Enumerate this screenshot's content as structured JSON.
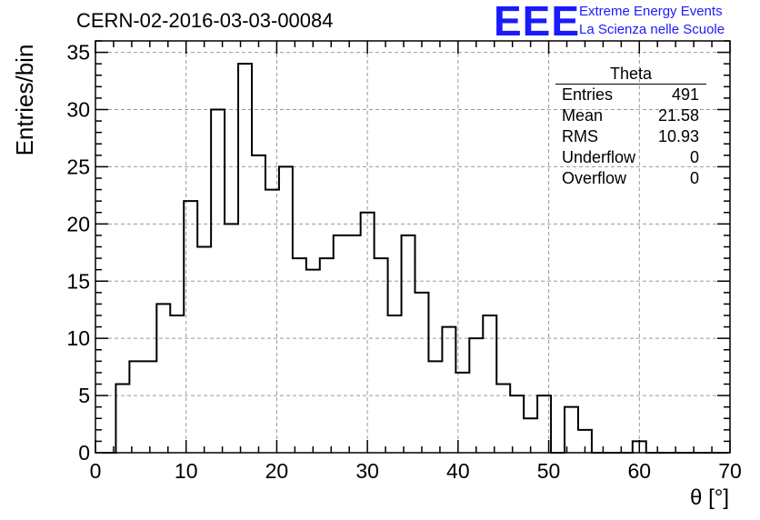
{
  "header": {
    "title": "CERN-02-2016-03-03-00084",
    "logo_text": "EEE",
    "logo_line1": "Extreme Energy Events",
    "logo_line2": "La Scienza nelle Scuole"
  },
  "colors": {
    "logo": "#1a1aff",
    "grid": "#999999",
    "line": "#000000"
  },
  "stats": {
    "title": "Theta",
    "rows": [
      {
        "label": "Entries",
        "value": "491"
      },
      {
        "label": "Mean",
        "value": "21.58"
      },
      {
        "label": "RMS",
        "value": "10.93"
      },
      {
        "label": "Underflow",
        "value": "0"
      },
      {
        "label": "Overflow",
        "value": "0"
      }
    ]
  },
  "chart_data": {
    "type": "histogram",
    "xlabel": "θ [°]",
    "ylabel": "Entries/bin",
    "xlim": [
      0,
      70
    ],
    "ylim": [
      0,
      36
    ],
    "grid": true,
    "bin_width": 1.5,
    "bin_start": 0.75,
    "counts": [
      0,
      6,
      8,
      8,
      13,
      12,
      22,
      18,
      30,
      20,
      34,
      26,
      23,
      25,
      17,
      16,
      17,
      19,
      19,
      21,
      17,
      12,
      19,
      14,
      8,
      11,
      7,
      10,
      12,
      6,
      5,
      3,
      5,
      0,
      4,
      2,
      0,
      0,
      0,
      1,
      0,
      0,
      0,
      0,
      0,
      0
    ],
    "xticks": [
      0,
      10,
      20,
      30,
      40,
      50,
      60,
      70
    ],
    "yticks": [
      0,
      5,
      10,
      15,
      20,
      25,
      30,
      35
    ]
  }
}
